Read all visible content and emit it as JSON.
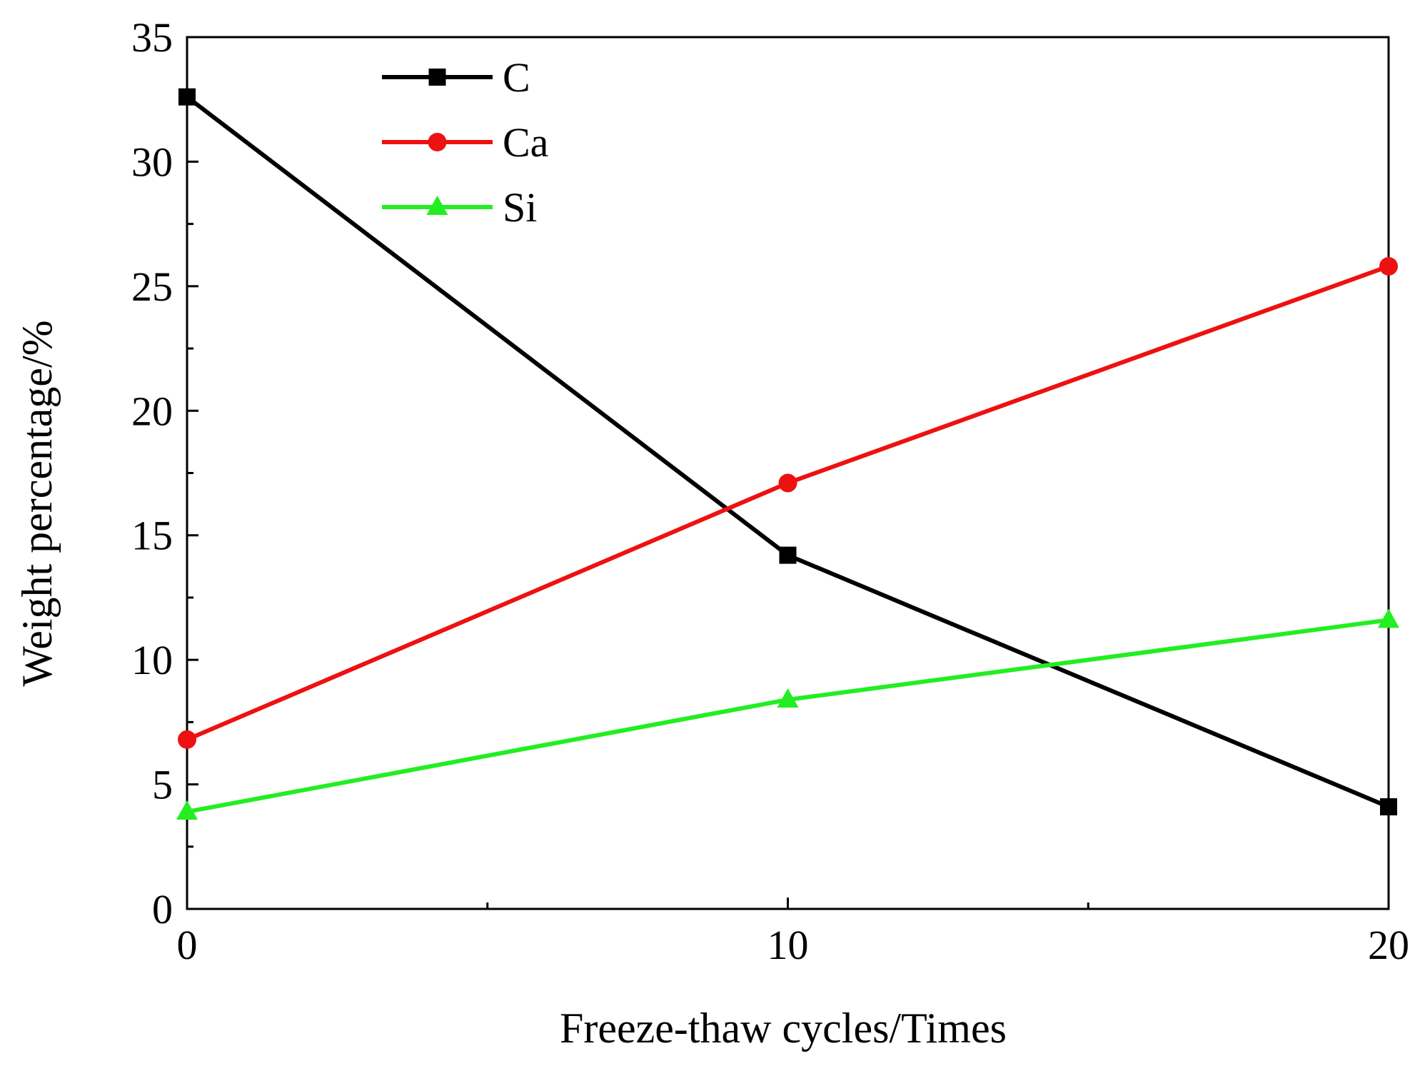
{
  "chart_data": {
    "type": "line",
    "title": "",
    "xlabel": "Freeze-thaw cycles/Times",
    "ylabel": "Weight percentage/%",
    "x": [
      0,
      10,
      20
    ],
    "xlim": [
      0,
      20
    ],
    "ylim": [
      0,
      35
    ],
    "x_ticks": [
      0,
      10,
      20
    ],
    "x_tick_labels": [
      "0",
      "10",
      "20"
    ],
    "y_ticks": [
      0,
      5,
      10,
      15,
      20,
      25,
      30,
      35
    ],
    "y_tick_labels": [
      "0",
      "5",
      "10",
      "15",
      "20",
      "25",
      "30",
      "35"
    ],
    "grid": false,
    "legend_position": "top-left",
    "series": [
      {
        "name": "C",
        "values": [
          32.6,
          14.2,
          4.1
        ],
        "color": "#000000",
        "marker": "square"
      },
      {
        "name": "Ca",
        "values": [
          6.8,
          17.1,
          25.8
        ],
        "color": "#ee1111",
        "marker": "circle"
      },
      {
        "name": "Si",
        "values": [
          3.9,
          8.4,
          11.6
        ],
        "color": "#22ee22",
        "marker": "triangle"
      }
    ]
  }
}
